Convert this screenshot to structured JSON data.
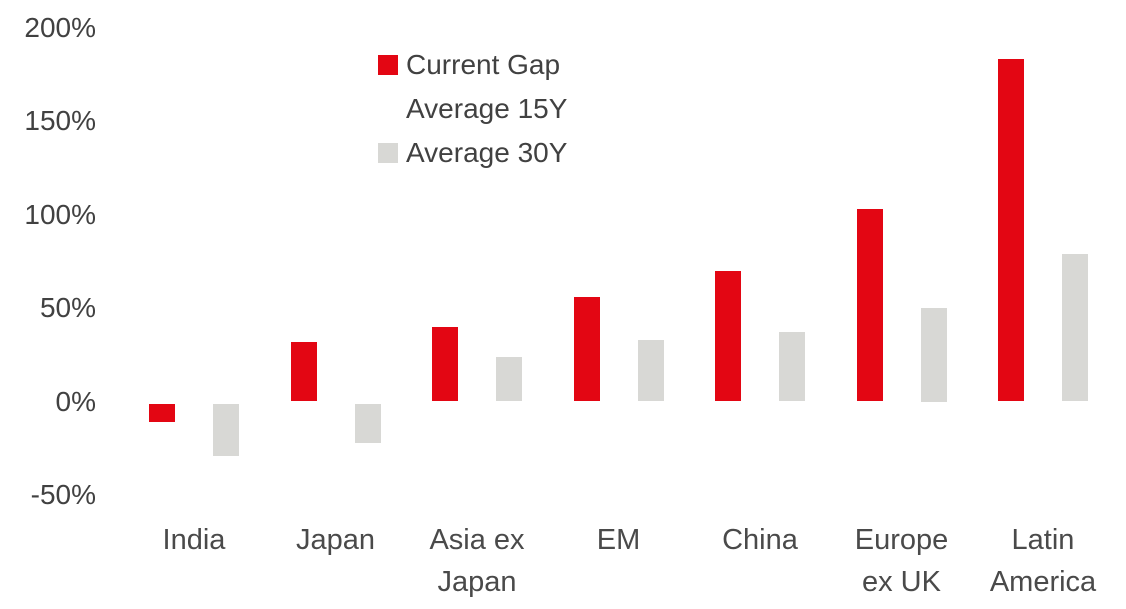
{
  "chart_data": {
    "type": "bar",
    "title": "",
    "xlabel": "",
    "ylabel": "",
    "ylim": [
      -50,
      200
    ],
    "grid": false,
    "background_color": "#ffffff",
    "text_color": "#414141",
    "categories": [
      "India",
      "Japan",
      "Asia ex\nJapan",
      "EM",
      "China",
      "Europe\nex UK",
      "Latin\nAmerica"
    ],
    "series": [
      {
        "name": "Current Gap Average 15Y",
        "color": "#e30613",
        "values": [
          -10,
          32,
          40,
          56,
          70,
          103,
          183
        ]
      },
      {
        "name": "Average 30Y",
        "color": "#d8d8d5",
        "values": [
          -28,
          -21,
          24,
          33,
          37,
          50,
          79
        ]
      }
    ],
    "yticks": [
      {
        "value": 200,
        "label": "200%"
      },
      {
        "value": 150,
        "label": "150%"
      },
      {
        "value": 100,
        "label": "100%"
      },
      {
        "value": 50,
        "label": "50%"
      },
      {
        "value": 0,
        "label": "0%"
      },
      {
        "value": -50,
        "label": "-50%"
      }
    ],
    "legend": {
      "position": "top-center",
      "entries": [
        {
          "swatch_color": "#e30613",
          "lines": [
            "Current Gap",
            "Average 15Y"
          ]
        },
        {
          "swatch_color": "#d8d8d5",
          "lines": [
            "Average 30Y"
          ]
        }
      ]
    }
  }
}
